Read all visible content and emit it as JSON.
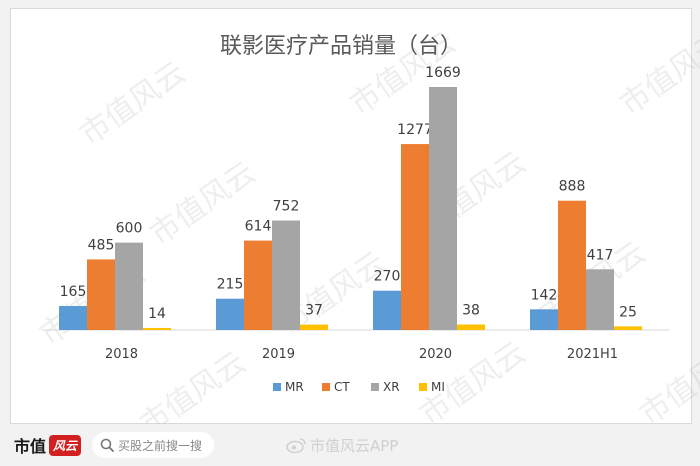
{
  "chart_data": {
    "type": "bar",
    "title": "联影医疗产品销量（台）",
    "categories": [
      "2018",
      "2019",
      "2020",
      "2021H1"
    ],
    "series": [
      {
        "name": "MR",
        "color": "#5b9bd5",
        "values": [
          165,
          215,
          270,
          142
        ]
      },
      {
        "name": "CT",
        "color": "#ed7d31",
        "values": [
          485,
          614,
          1277,
          888
        ]
      },
      {
        "name": "XR",
        "color": "#a5a5a5",
        "values": [
          600,
          752,
          1669,
          417
        ]
      },
      {
        "name": "MI",
        "color": "#ffc000",
        "values": [
          14,
          37,
          38,
          25
        ]
      }
    ],
    "ylim": [
      0,
      1669
    ],
    "grid": false,
    "legend": "bottom"
  },
  "watermark": "市值风云",
  "footer": {
    "brand": "市值",
    "brand_mark": "风云",
    "search_placeholder": "买股之前搜一搜",
    "credit": "市值风云APP"
  }
}
